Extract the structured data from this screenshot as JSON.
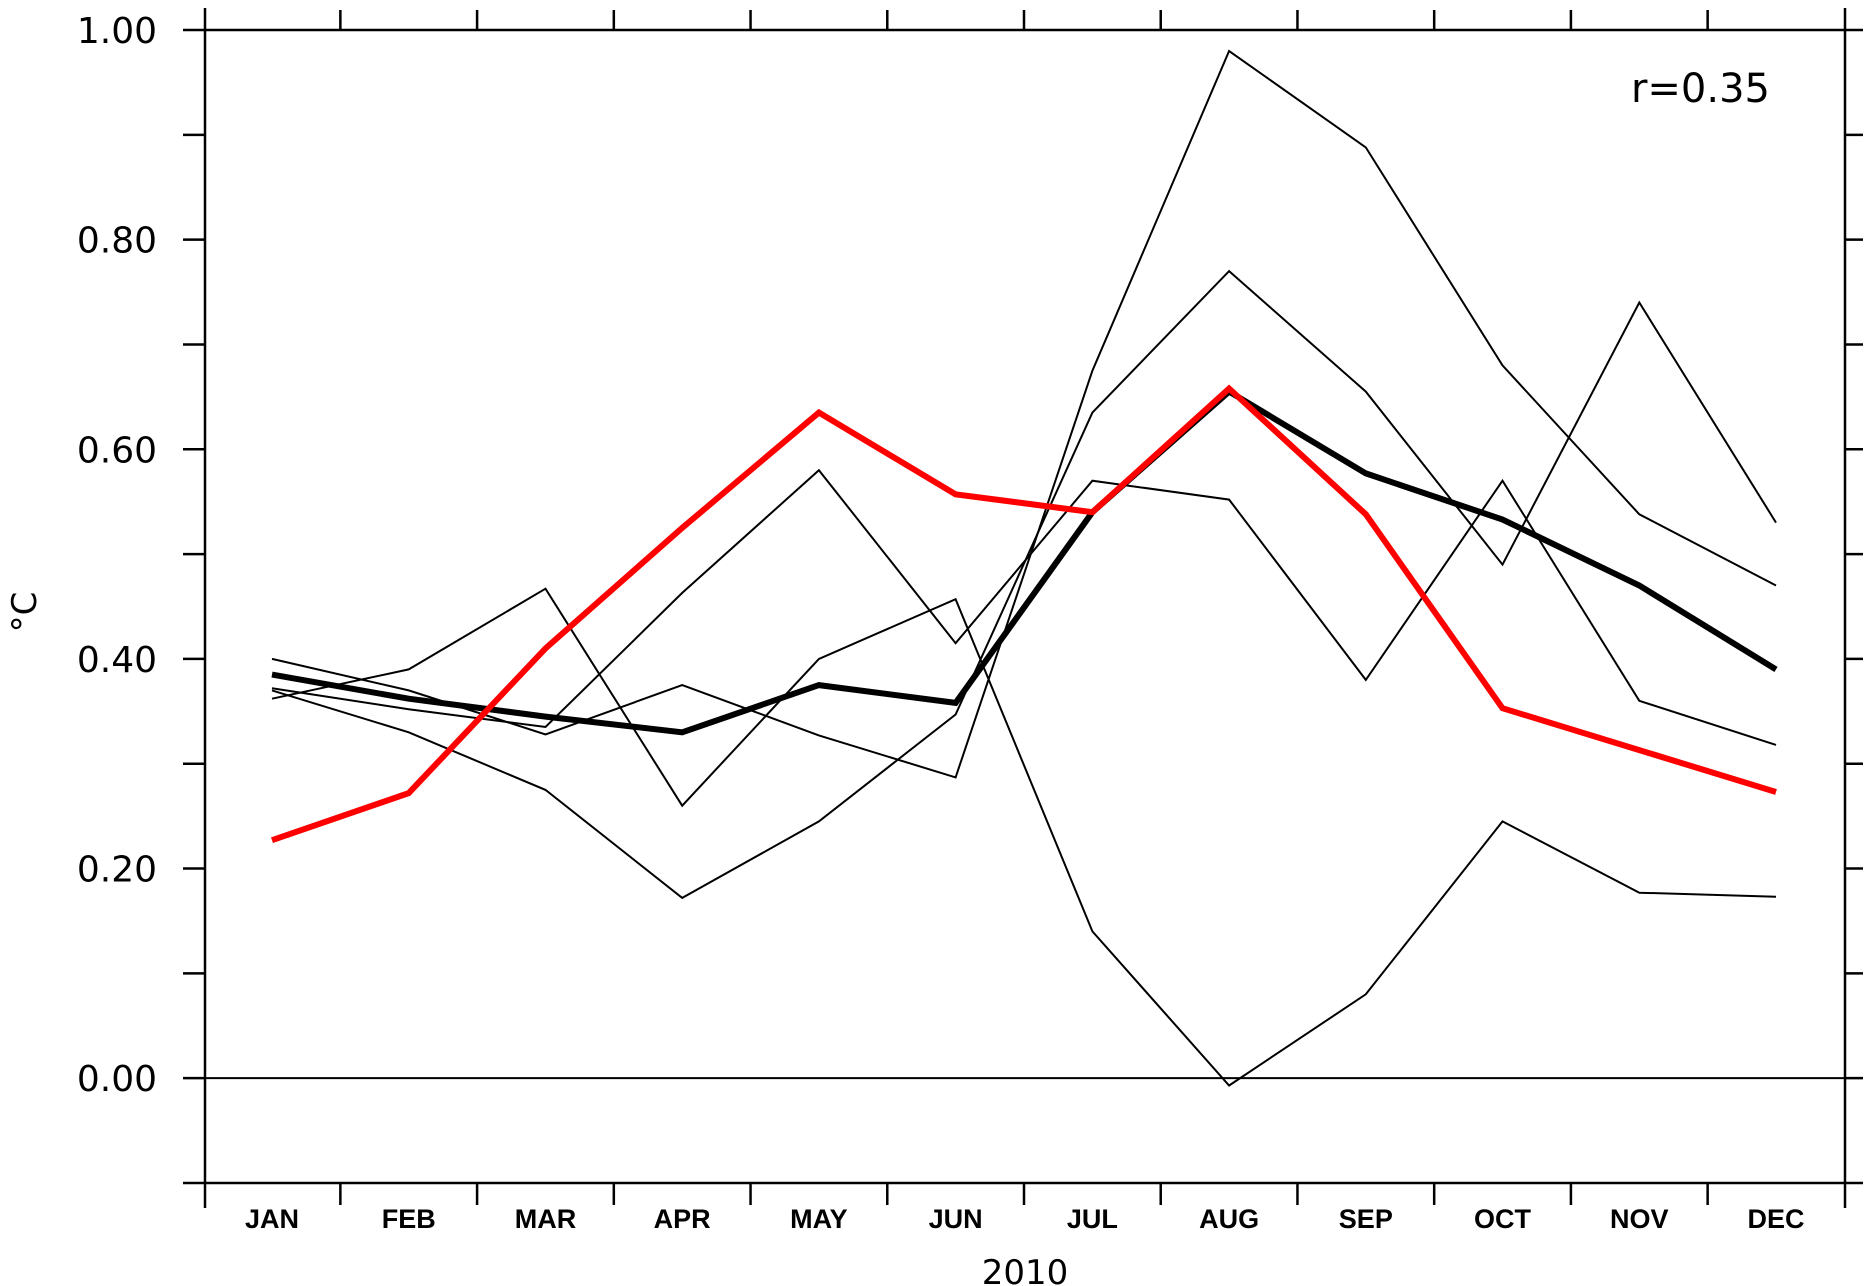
{
  "chart_data": {
    "type": "line",
    "title": "",
    "xlabel": "2010",
    "ylabel": "°C",
    "annotation": "r=0.35",
    "ylim": [
      -0.1,
      1.0
    ],
    "yticks_major": [
      0.0,
      0.2,
      0.4,
      0.6,
      0.8,
      1.0
    ],
    "yticks_labels": [
      "0.00",
      "0.20",
      "0.40",
      "0.60",
      "0.80",
      "1.00"
    ],
    "yticks_minor": [
      -0.1,
      0.1,
      0.3,
      0.5,
      0.7,
      0.9
    ],
    "reference_line": 0.0,
    "grid": false,
    "legend": "none",
    "categories": [
      "JAN",
      "FEB",
      "MAR",
      "APR",
      "MAY",
      "JUN",
      "JUL",
      "AUG",
      "SEP",
      "OCT",
      "NOV",
      "DEC"
    ],
    "series": [
      {
        "color": "#000000",
        "emphasis": "thin",
        "values": [
          0.37,
          0.33,
          0.275,
          0.172,
          0.245,
          0.347,
          0.635,
          0.77,
          0.655,
          0.49,
          0.74,
          0.53
        ]
      },
      {
        "color": "#000000",
        "emphasis": "thin",
        "values": [
          0.362,
          0.39,
          0.467,
          0.26,
          0.4,
          0.457,
          0.14,
          -0.007,
          0.08,
          0.245,
          0.177,
          0.173
        ]
      },
      {
        "color": "#000000",
        "emphasis": "thin",
        "values": [
          0.4,
          0.37,
          0.328,
          0.375,
          0.327,
          0.287,
          0.675,
          0.98,
          0.888,
          0.68,
          0.538,
          0.47
        ]
      },
      {
        "color": "#000000",
        "emphasis": "thin",
        "values": [
          0.372,
          0.352,
          0.335,
          0.463,
          0.58,
          0.415,
          0.57,
          0.552,
          0.38,
          0.57,
          0.36,
          0.318
        ]
      },
      {
        "color": "#000000",
        "emphasis": "thick",
        "values": [
          0.385,
          0.362,
          0.345,
          0.33,
          0.375,
          0.358,
          0.54,
          0.655,
          0.577,
          0.533,
          0.47,
          0.39
        ]
      },
      {
        "color": "#ff0000",
        "emphasis": "thick",
        "values": [
          0.227,
          0.272,
          0.41,
          0.525,
          0.635,
          0.557,
          0.54,
          0.658,
          0.538,
          0.353,
          0.313,
          0.273
        ]
      }
    ]
  }
}
